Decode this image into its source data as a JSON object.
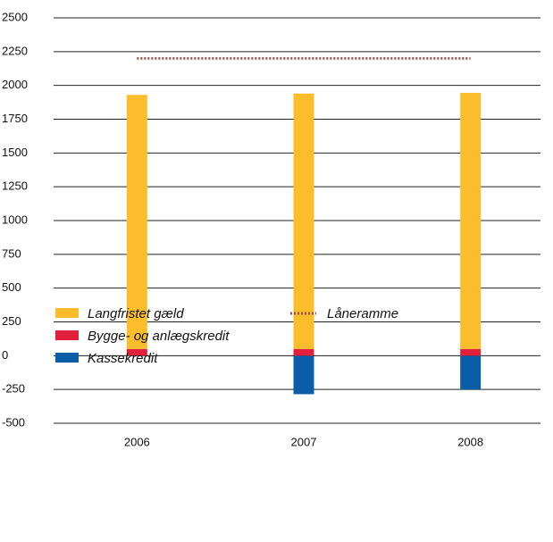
{
  "chart_data": {
    "type": "bar",
    "stacked": true,
    "categories": [
      "2006",
      "2007",
      "2008"
    ],
    "series": [
      {
        "name": "Langfristet gæld",
        "color": "#fbbd2c",
        "values": [
          1880,
          1890,
          1895
        ]
      },
      {
        "name": "Bygge- og anlægskredit",
        "color": "#e2203c",
        "values": [
          50,
          50,
          50
        ]
      },
      {
        "name": "Kassekredit",
        "color": "#0c5da8",
        "values": [
          0,
          -285,
          -250
        ]
      },
      {
        "name": "Låneramme",
        "color": "#a0504a",
        "type": "line",
        "style": "dotted",
        "values": [
          2200,
          2200,
          2200
        ]
      }
    ],
    "ylim": [
      -500,
      2500
    ],
    "yticks": [
      -500,
      -250,
      0,
      250,
      500,
      750,
      1000,
      1250,
      1500,
      1750,
      2000,
      2250,
      2500
    ],
    "grid": true
  }
}
